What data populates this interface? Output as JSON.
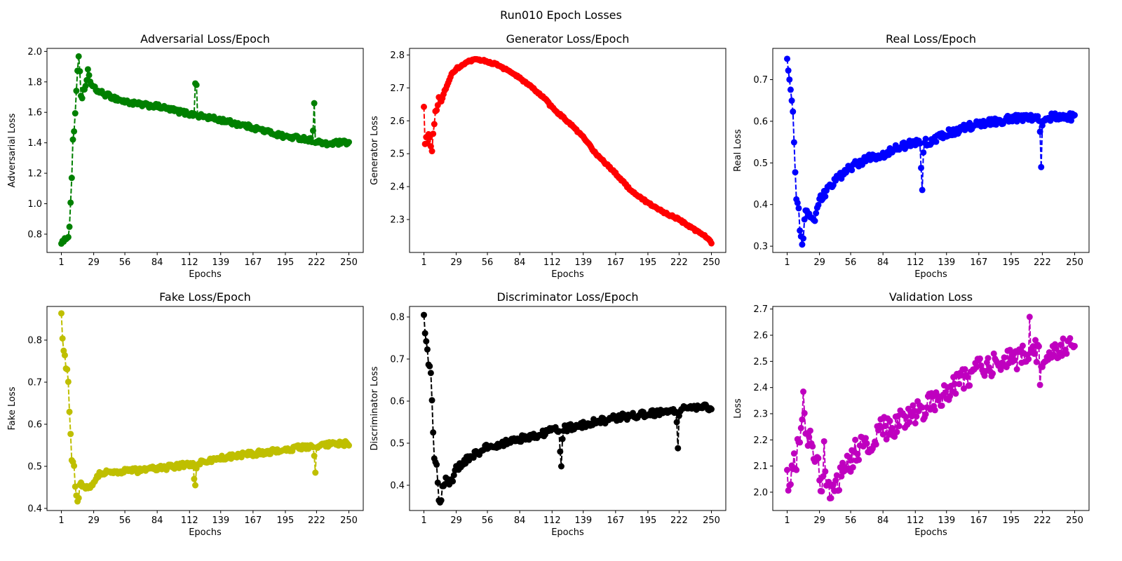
{
  "figure": {
    "title": "Run010 Epoch Losses"
  },
  "chart_data": [
    {
      "type": "line",
      "title": "Adversarial Loss/Epoch",
      "xlabel": "Epochs",
      "ylabel": "Adversarial Loss",
      "color": "#008000",
      "xticks": [
        1,
        29,
        56,
        84,
        112,
        139,
        167,
        195,
        222,
        250
      ],
      "yticks": [
        0.8,
        1.0,
        1.2,
        1.4,
        1.6,
        1.8,
        2.0
      ],
      "ylim": [
        0.68,
        2.02
      ],
      "anchors": [
        [
          1,
          0.75
        ],
        [
          2,
          0.75
        ],
        [
          3,
          0.74
        ],
        [
          4,
          0.76
        ],
        [
          5,
          0.78
        ],
        [
          7,
          0.79
        ],
        [
          8,
          0.84
        ],
        [
          9,
          1.01
        ],
        [
          10,
          1.18
        ],
        [
          11,
          1.42
        ],
        [
          12,
          1.48
        ],
        [
          13,
          1.58
        ],
        [
          14,
          1.74
        ],
        [
          15,
          1.88
        ],
        [
          16,
          1.97
        ],
        [
          17,
          1.87
        ],
        [
          18,
          1.72
        ],
        [
          19,
          1.68
        ],
        [
          20,
          1.74
        ],
        [
          22,
          1.76
        ],
        [
          23,
          1.8
        ],
        [
          24,
          1.89
        ],
        [
          25,
          1.84
        ],
        [
          27,
          1.78
        ],
        [
          29,
          1.76
        ],
        [
          35,
          1.73
        ],
        [
          45,
          1.7
        ],
        [
          56,
          1.67
        ],
        [
          70,
          1.65
        ],
        [
          84,
          1.64
        ],
        [
          100,
          1.61
        ],
        [
          112,
          1.59
        ],
        [
          139,
          1.55
        ],
        [
          167,
          1.5
        ],
        [
          195,
          1.44
        ],
        [
          210,
          1.43
        ],
        [
          222,
          1.41
        ],
        [
          230,
          1.39
        ],
        [
          240,
          1.4
        ],
        [
          250,
          1.4
        ]
      ],
      "spikes": [
        [
          117,
          1.79
        ],
        [
          118,
          1.78
        ],
        [
          219,
          1.48
        ],
        [
          220,
          1.66
        ]
      ],
      "noise": 0.014
    },
    {
      "type": "line",
      "title": "Generator Loss/Epoch",
      "xlabel": "Epochs",
      "ylabel": "Generator Loss",
      "color": "#ff0000",
      "xticks": [
        1,
        29,
        56,
        84,
        112,
        139,
        167,
        195,
        222,
        250
      ],
      "yticks": [
        2.3,
        2.4,
        2.5,
        2.6,
        2.7,
        2.8
      ],
      "ylim": [
        2.2,
        2.82
      ],
      "anchors": [
        [
          1,
          2.64
        ],
        [
          2,
          2.53
        ],
        [
          3,
          2.55
        ],
        [
          4,
          2.53
        ],
        [
          5,
          2.56
        ],
        [
          6,
          2.55
        ],
        [
          7,
          2.52
        ],
        [
          8,
          2.51
        ],
        [
          9,
          2.56
        ],
        [
          10,
          2.59
        ],
        [
          11,
          2.63
        ],
        [
          12,
          2.63
        ],
        [
          14,
          2.67
        ],
        [
          16,
          2.66
        ],
        [
          20,
          2.7
        ],
        [
          25,
          2.74
        ],
        [
          30,
          2.76
        ],
        [
          35,
          2.77
        ],
        [
          40,
          2.78
        ],
        [
          45,
          2.785
        ],
        [
          50,
          2.785
        ],
        [
          56,
          2.78
        ],
        [
          65,
          2.77
        ],
        [
          75,
          2.75
        ],
        [
          84,
          2.73
        ],
        [
          95,
          2.7
        ],
        [
          105,
          2.67
        ],
        [
          112,
          2.64
        ],
        [
          125,
          2.6
        ],
        [
          139,
          2.55
        ],
        [
          150,
          2.5
        ],
        [
          167,
          2.44
        ],
        [
          180,
          2.39
        ],
        [
          195,
          2.35
        ],
        [
          210,
          2.32
        ],
        [
          222,
          2.3
        ],
        [
          235,
          2.27
        ],
        [
          245,
          2.25
        ],
        [
          250,
          2.23
        ]
      ],
      "spikes": [],
      "noise": 0.003
    },
    {
      "type": "line",
      "title": "Real Loss/Epoch",
      "xlabel": "Epochs",
      "ylabel": "Real Loss",
      "color": "#0000ff",
      "xticks": [
        1,
        29,
        56,
        84,
        112,
        139,
        167,
        195,
        222,
        250
      ],
      "yticks": [
        0.3,
        0.4,
        0.5,
        0.6,
        0.7
      ],
      "ylim": [
        0.285,
        0.775
      ],
      "anchors": [
        [
          1,
          0.755
        ],
        [
          2,
          0.72
        ],
        [
          3,
          0.695
        ],
        [
          4,
          0.672
        ],
        [
          5,
          0.648
        ],
        [
          6,
          0.628
        ],
        [
          7,
          0.552
        ],
        [
          8,
          0.47
        ],
        [
          9,
          0.42
        ],
        [
          10,
          0.41
        ],
        [
          11,
          0.4
        ],
        [
          12,
          0.345
        ],
        [
          13,
          0.315
        ],
        [
          14,
          0.3
        ],
        [
          15,
          0.31
        ],
        [
          16,
          0.36
        ],
        [
          17,
          0.38
        ],
        [
          19,
          0.375
        ],
        [
          22,
          0.37
        ],
        [
          25,
          0.36
        ],
        [
          29,
          0.41
        ],
        [
          40,
          0.45
        ],
        [
          56,
          0.49
        ],
        [
          70,
          0.51
        ],
        [
          84,
          0.52
        ],
        [
          100,
          0.54
        ],
        [
          112,
          0.55
        ],
        [
          125,
          0.55
        ],
        [
          139,
          0.57
        ],
        [
          150,
          0.58
        ],
        [
          167,
          0.595
        ],
        [
          180,
          0.6
        ],
        [
          195,
          0.605
        ],
        [
          210,
          0.61
        ],
        [
          222,
          0.61
        ],
        [
          235,
          0.61
        ],
        [
          250,
          0.61
        ]
      ],
      "spikes": [
        [
          117,
          0.488
        ],
        [
          118,
          0.435
        ],
        [
          119,
          0.525
        ],
        [
          220,
          0.575
        ],
        [
          221,
          0.49
        ],
        [
          222,
          0.59
        ]
      ],
      "noise": 0.009
    },
    {
      "type": "line",
      "title": "Fake Loss/Epoch",
      "xlabel": "Epochs",
      "ylabel": "Fake Loss",
      "color": "#bfbf00",
      "xticks": [
        1,
        29,
        56,
        84,
        112,
        139,
        167,
        195,
        222,
        250
      ],
      "yticks": [
        0.4,
        0.5,
        0.6,
        0.7,
        0.8
      ],
      "ylim": [
        0.395,
        0.88
      ],
      "anchors": [
        [
          1,
          0.858
        ],
        [
          2,
          0.805
        ],
        [
          3,
          0.78
        ],
        [
          4,
          0.76
        ],
        [
          5,
          0.735
        ],
        [
          6,
          0.73
        ],
        [
          7,
          0.705
        ],
        [
          8,
          0.635
        ],
        [
          9,
          0.582
        ],
        [
          10,
          0.52
        ],
        [
          11,
          0.51
        ],
        [
          12,
          0.5
        ],
        [
          13,
          0.455
        ],
        [
          14,
          0.43
        ],
        [
          15,
          0.415
        ],
        [
          16,
          0.425
        ],
        [
          17,
          0.46
        ],
        [
          20,
          0.455
        ],
        [
          24,
          0.445
        ],
        [
          29,
          0.465
        ],
        [
          35,
          0.485
        ],
        [
          45,
          0.485
        ],
        [
          56,
          0.49
        ],
        [
          70,
          0.49
        ],
        [
          84,
          0.495
        ],
        [
          100,
          0.5
        ],
        [
          112,
          0.505
        ],
        [
          125,
          0.51
        ],
        [
          139,
          0.52
        ],
        [
          167,
          0.53
        ],
        [
          195,
          0.54
        ],
        [
          222,
          0.55
        ],
        [
          250,
          0.555
        ]
      ],
      "spikes": [
        [
          116,
          0.47
        ],
        [
          117,
          0.455
        ],
        [
          118,
          0.495
        ],
        [
          220,
          0.525
        ],
        [
          221,
          0.485
        ],
        [
          222,
          0.545
        ]
      ],
      "noise": 0.006
    },
    {
      "type": "line",
      "title": "Discriminator Loss/Epoch",
      "xlabel": "Epochs",
      "ylabel": "Discriminator Loss",
      "color": "#000000",
      "xticks": [
        1,
        29,
        56,
        84,
        112,
        139,
        167,
        195,
        222,
        250
      ],
      "yticks": [
        0.4,
        0.5,
        0.6,
        0.7,
        0.8
      ],
      "ylim": [
        0.34,
        0.825
      ],
      "anchors": [
        [
          1,
          0.805
        ],
        [
          2,
          0.76
        ],
        [
          3,
          0.74
        ],
        [
          4,
          0.72
        ],
        [
          5,
          0.69
        ],
        [
          6,
          0.69
        ],
        [
          7,
          0.665
        ],
        [
          8,
          0.595
        ],
        [
          9,
          0.528
        ],
        [
          10,
          0.47
        ],
        [
          11,
          0.46
        ],
        [
          12,
          0.445
        ],
        [
          13,
          0.4
        ],
        [
          14,
          0.37
        ],
        [
          15,
          0.355
        ],
        [
          16,
          0.37
        ],
        [
          17,
          0.4
        ],
        [
          20,
          0.415
        ],
        [
          25,
          0.405
        ],
        [
          29,
          0.44
        ],
        [
          40,
          0.465
        ],
        [
          56,
          0.49
        ],
        [
          70,
          0.5
        ],
        [
          84,
          0.51
        ],
        [
          100,
          0.52
        ],
        [
          112,
          0.53
        ],
        [
          125,
          0.535
        ],
        [
          139,
          0.545
        ],
        [
          150,
          0.55
        ],
        [
          167,
          0.56
        ],
        [
          180,
          0.565
        ],
        [
          195,
          0.57
        ],
        [
          210,
          0.575
        ],
        [
          222,
          0.58
        ],
        [
          235,
          0.585
        ],
        [
          250,
          0.585
        ]
      ],
      "spikes": [
        [
          119,
          0.48
        ],
        [
          120,
          0.445
        ],
        [
          121,
          0.51
        ],
        [
          220,
          0.55
        ],
        [
          221,
          0.488
        ],
        [
          222,
          0.565
        ]
      ],
      "noise": 0.008
    },
    {
      "type": "line",
      "title": "Validation Loss",
      "xlabel": "Epochs",
      "ylabel": "Loss",
      "color": "#bf00bf",
      "xticks": [
        1,
        29,
        56,
        84,
        112,
        139,
        167,
        195,
        222,
        250
      ],
      "yticks": [
        2.0,
        2.1,
        2.2,
        2.3,
        2.4,
        2.5,
        2.6,
        2.7
      ],
      "ylim": [
        1.93,
        2.71
      ],
      "anchors": [
        [
          1,
          2.06
        ],
        [
          3,
          2.0
        ],
        [
          5,
          2.12
        ],
        [
          8,
          2.1
        ],
        [
          12,
          2.22
        ],
        [
          15,
          2.35
        ],
        [
          17,
          2.2
        ],
        [
          20,
          2.22
        ],
        [
          24,
          2.16
        ],
        [
          27,
          2.12
        ],
        [
          29,
          2.05
        ],
        [
          31,
          1.96
        ],
        [
          33,
          2.16
        ],
        [
          35,
          2.0
        ],
        [
          40,
          2.02
        ],
        [
          45,
          2.03
        ],
        [
          50,
          2.08
        ],
        [
          56,
          2.12
        ],
        [
          60,
          2.16
        ],
        [
          70,
          2.18
        ],
        [
          80,
          2.22
        ],
        [
          84,
          2.25
        ],
        [
          90,
          2.24
        ],
        [
          100,
          2.28
        ],
        [
          112,
          2.3
        ],
        [
          125,
          2.34
        ],
        [
          139,
          2.38
        ],
        [
          150,
          2.42
        ],
        [
          167,
          2.47
        ],
        [
          180,
          2.49
        ],
        [
          195,
          2.51
        ],
        [
          205,
          2.52
        ],
        [
          212,
          2.55
        ],
        [
          222,
          2.52
        ],
        [
          230,
          2.52
        ],
        [
          240,
          2.56
        ],
        [
          250,
          2.58
        ]
      ],
      "spikes": [
        [
          211,
          2.67
        ],
        [
          220,
          2.41
        ]
      ],
      "noise": 0.045
    }
  ]
}
